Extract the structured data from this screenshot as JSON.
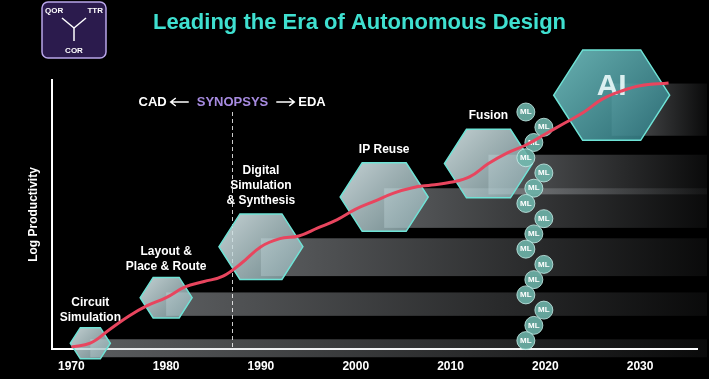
{
  "chart_data": {
    "type": "line",
    "title": "Leading the Era of Autonomous Design",
    "y_label": "Log Productivity",
    "x": [
      1970,
      1972,
      1974,
      1976,
      1978,
      1980,
      1982,
      1984,
      1986,
      1988,
      1990,
      1992,
      1994,
      1996,
      1998,
      2000,
      2002,
      2004,
      2006,
      2008,
      2010,
      2012,
      2014,
      2016,
      2018,
      2020,
      2022,
      2024,
      2026,
      2028,
      2030,
      2033
    ],
    "values": [
      0.6,
      2,
      7,
      12,
      16,
      19,
      23,
      25,
      27,
      32,
      38,
      41,
      42,
      45,
      48,
      52,
      55,
      58,
      60,
      61,
      62,
      64,
      69,
      73,
      76,
      80,
      84,
      88,
      93,
      96,
      98,
      99
    ],
    "color": "#e8455e",
    "xlim": [
      1968,
      2036
    ],
    "xticks": [
      1970,
      1980,
      1990,
      2000,
      2010,
      2020,
      2030
    ],
    "ylim": [
      0,
      100
    ],
    "tick_labels": "x",
    "grid": false,
    "stages": [
      {
        "lines": [
          "Circuit",
          "Simulation"
        ],
        "x": 1972
      },
      {
        "lines": [
          "Layout &",
          "Place & Route"
        ],
        "x": 1980
      },
      {
        "lines": [
          "Digital",
          "Simulation",
          "& Synthesis"
        ],
        "x": 1990
      },
      {
        "lines": [
          "IP Reuse"
        ],
        "x": 2003
      },
      {
        "lines": [
          "Fusion"
        ],
        "x": 2014
      },
      {
        "lines": [
          "AI"
        ],
        "x": 2027
      }
    ],
    "divider": {
      "x": 1987,
      "left": "CAD",
      "brand": "SYNOPSYS",
      "right": "EDA"
    },
    "ml_bubbles": {
      "text": "ML",
      "count": 16
    },
    "icon_labels": [
      "QOR",
      "TTR",
      "COR"
    ]
  }
}
